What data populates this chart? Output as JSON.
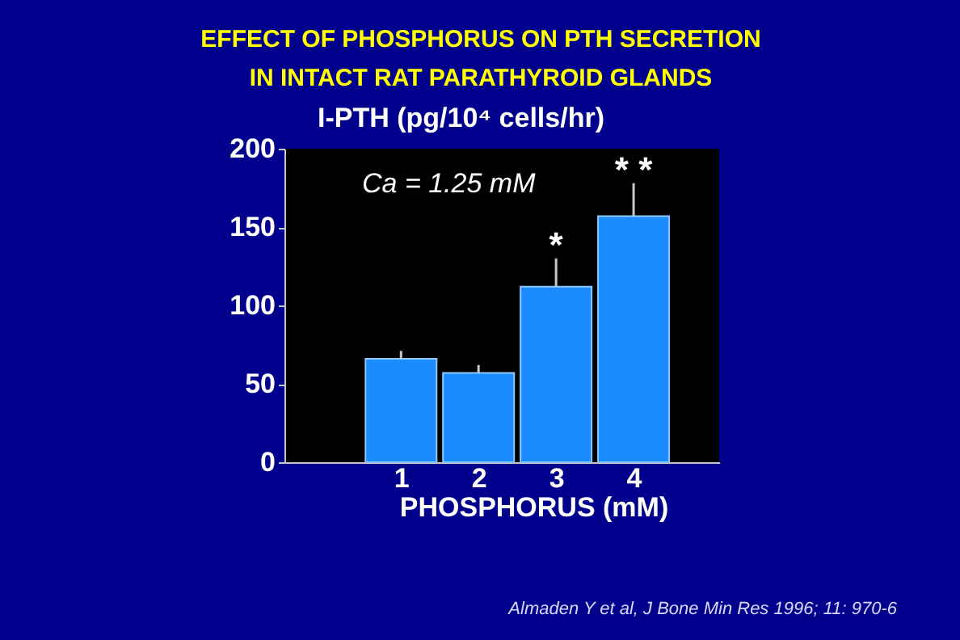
{
  "chart_data": {
    "type": "bar",
    "title": "EFFECT OF PHOSPHORUS ON PTH SECRETION\nIN INTACT RAT PARATHYROID GLANDS",
    "xlabel": "PHOSPHORUS (mM)",
    "ylabel": "I-PTH (pg/10⁴ cells/hr)",
    "x": [
      1,
      2,
      3,
      4
    ],
    "values": [
      66,
      57,
      112,
      157
    ],
    "color": "#1a8cff",
    "errors": [
      [
        66,
        71
      ],
      [
        57,
        62
      ],
      [
        112,
        130
      ],
      [
        157,
        178
      ]
    ],
    "xlim": [
      -0.4,
      5
    ],
    "xticks": [
      1,
      2,
      3,
      4
    ],
    "ylim": [
      0,
      200
    ],
    "yticks": [
      0,
      50,
      100,
      150,
      200
    ],
    "grid": false,
    "annotations": [
      {
        "text": "*",
        "x": 3,
        "y": 130
      },
      {
        "text": "* *",
        "x": 4,
        "y": 178
      },
      "Ca = 1.25 mM",
      "Almaden Y et al, J Bone Min Res 1996; 11: 970-6"
    ]
  }
}
